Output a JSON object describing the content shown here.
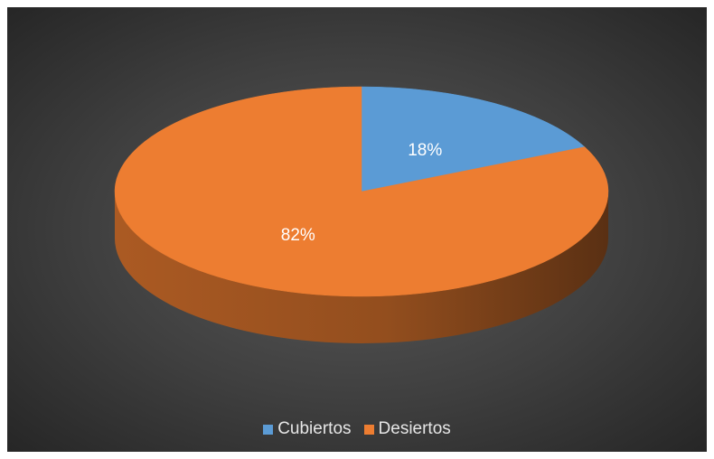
{
  "chart_data": {
    "type": "pie",
    "title": "",
    "categories": [
      "Cubiertos",
      "Desiertos"
    ],
    "values": [
      18,
      82
    ],
    "labels": [
      "18%",
      "82%"
    ],
    "colors": [
      "#5B9BD5",
      "#ED7D31"
    ],
    "style": "3d",
    "legend_position": "bottom"
  },
  "legend": {
    "items": [
      {
        "label": "Cubiertos",
        "color": "#5B9BD5"
      },
      {
        "label": "Desiertos",
        "color": "#ED7D31"
      }
    ]
  }
}
